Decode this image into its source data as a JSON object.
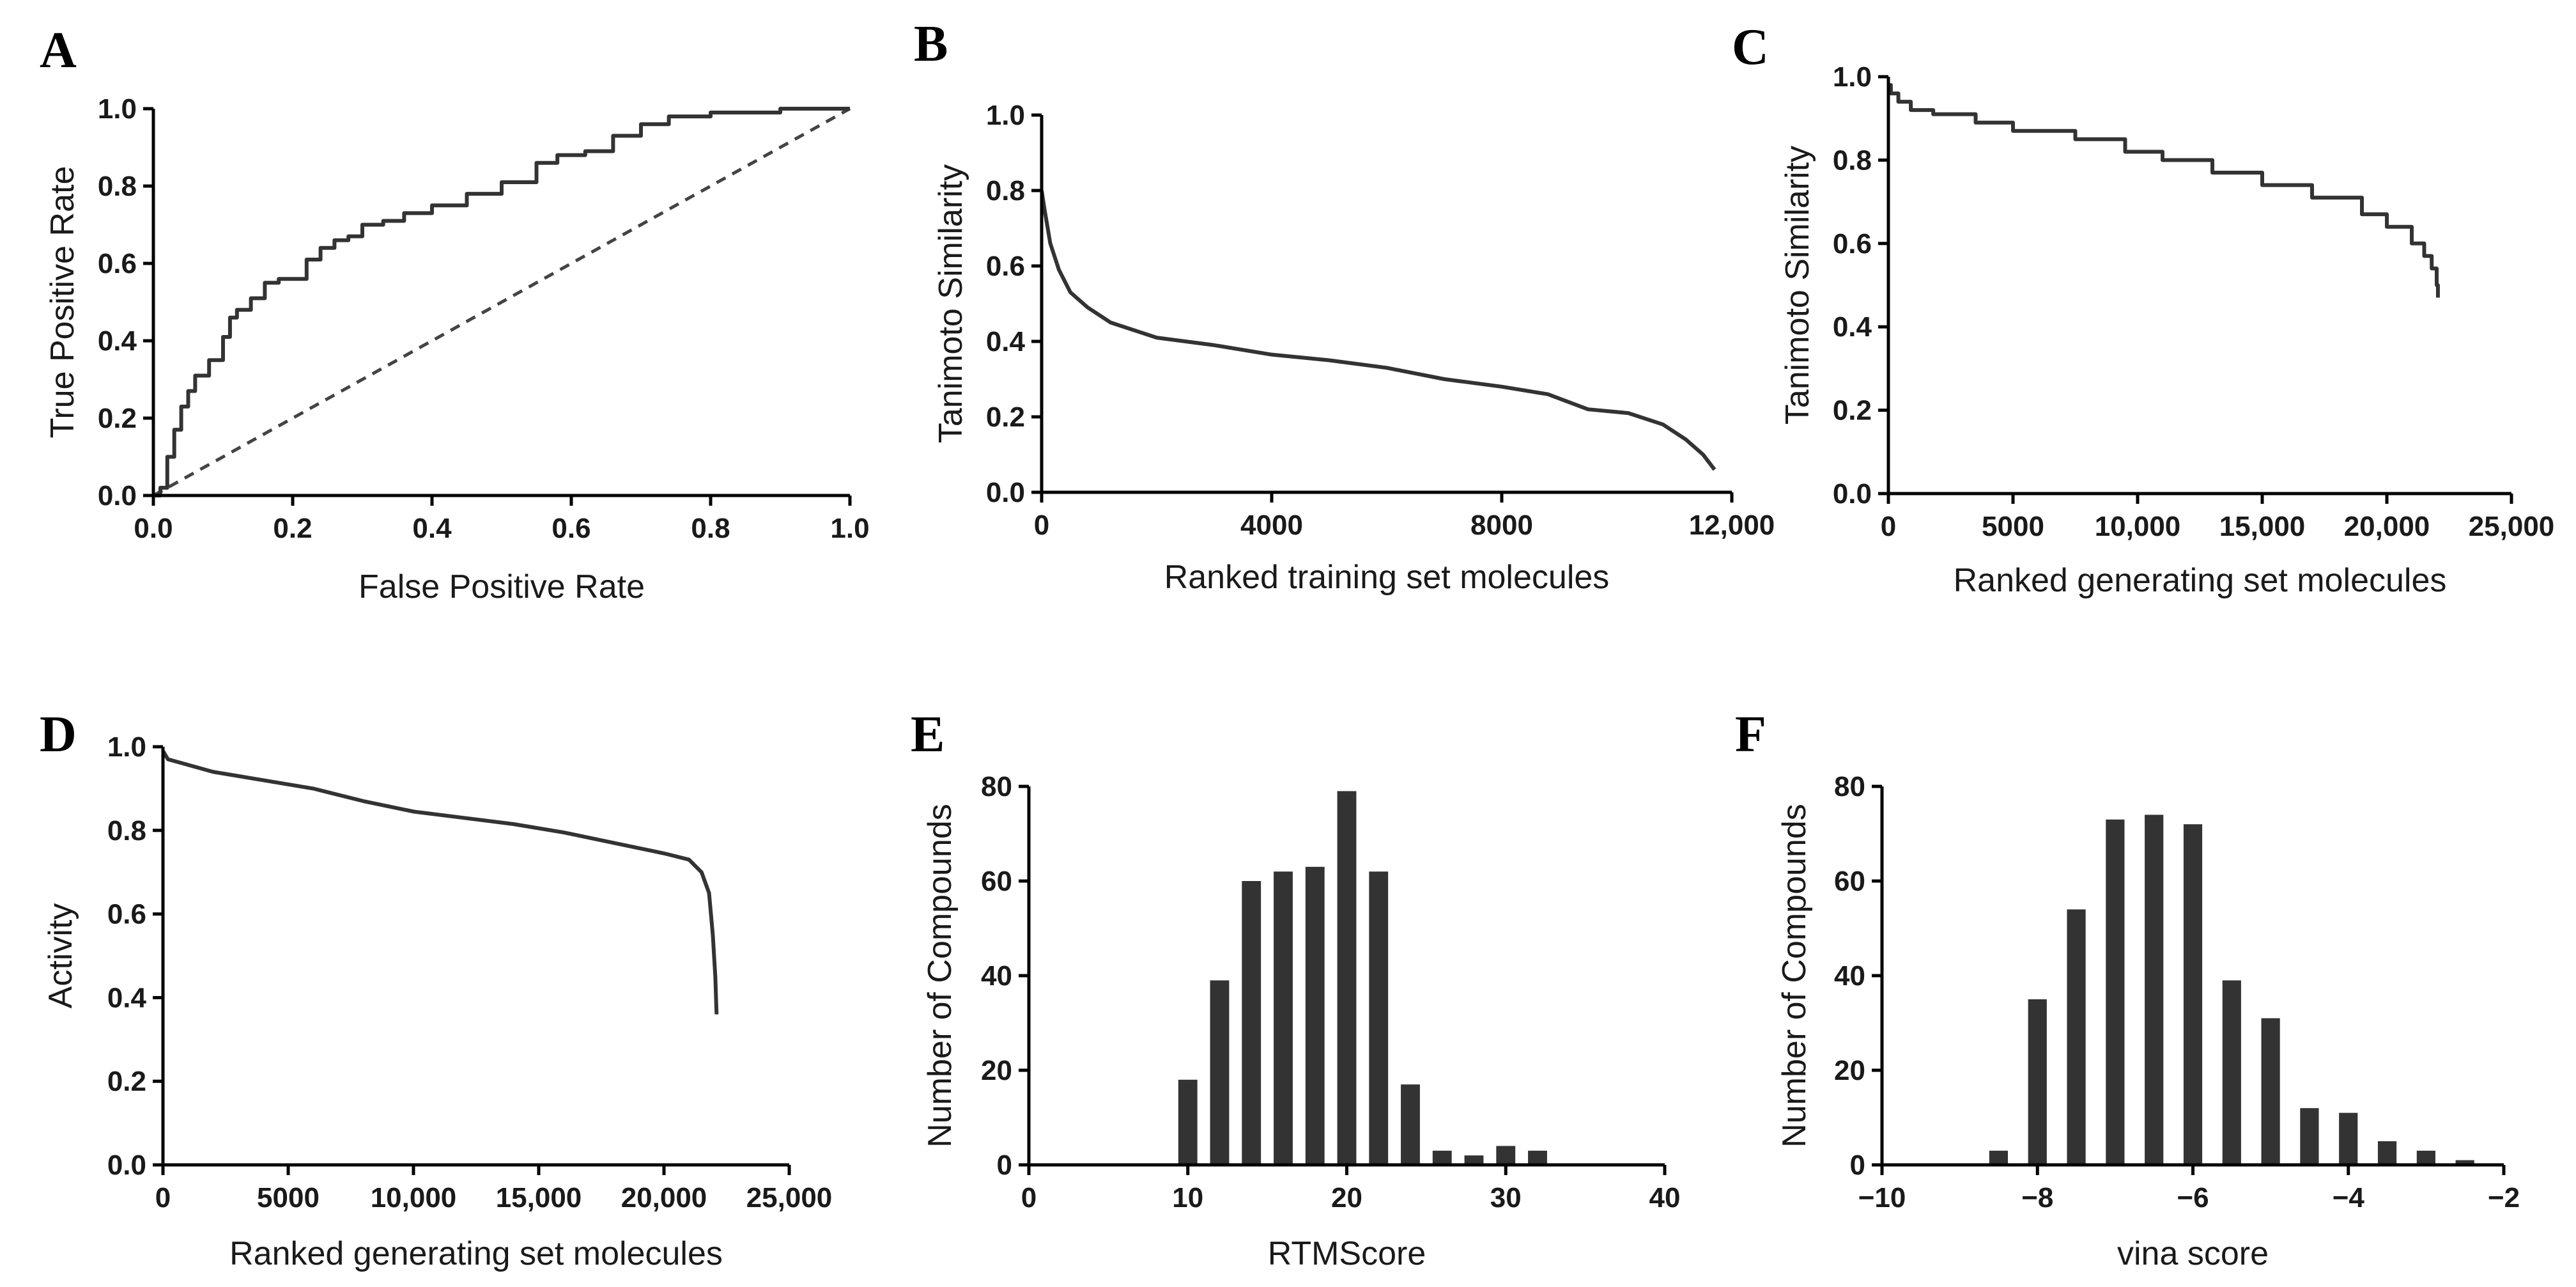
{
  "panels": [
    {
      "id": "A",
      "letter": "A",
      "chart_data": {
        "type": "line",
        "xlabel": "False Positive Rate",
        "ylabel": "True Positive Rate",
        "xlim": [
          0,
          1.0
        ],
        "ylim": [
          0,
          1.0
        ],
        "xticks": [
          "0.0",
          "0.2",
          "0.4",
          "0.6",
          "0.8",
          "1.0"
        ],
        "yticks": [
          "0.0",
          "0.2",
          "0.4",
          "0.6",
          "0.8",
          "1.0"
        ],
        "step": true,
        "series": [
          {
            "x": [
              0.0,
              0.01,
              0.02,
              0.03,
              0.04,
              0.05,
              0.06,
              0.08,
              0.1,
              0.11,
              0.12,
              0.14,
              0.16,
              0.18,
              0.2,
              0.22,
              0.24,
              0.26,
              0.28,
              0.3,
              0.33,
              0.36,
              0.4,
              0.45,
              0.5,
              0.55,
              0.58,
              0.62,
              0.66,
              0.7,
              0.74,
              0.8,
              0.85,
              0.9,
              1.0
            ],
            "y": [
              0.0,
              0.02,
              0.1,
              0.17,
              0.23,
              0.27,
              0.31,
              0.35,
              0.41,
              0.46,
              0.48,
              0.51,
              0.55,
              0.56,
              0.56,
              0.61,
              0.64,
              0.66,
              0.67,
              0.7,
              0.71,
              0.73,
              0.75,
              0.78,
              0.81,
              0.86,
              0.88,
              0.89,
              0.93,
              0.96,
              0.98,
              0.99,
              0.99,
              1.0,
              1.0
            ]
          }
        ],
        "reference_line": {
          "x": [
            0,
            1.0
          ],
          "y": [
            0,
            1.0
          ]
        }
      }
    },
    {
      "id": "B",
      "letter": "B",
      "chart_data": {
        "type": "line",
        "xlabel": "Ranked training set molecules",
        "ylabel": "Tanimoto Similarity",
        "xlim": [
          0,
          12000
        ],
        "ylim": [
          0,
          1.0
        ],
        "xticks": [
          "0",
          "4000",
          "8000",
          "12,000"
        ],
        "yticks": [
          "0.0",
          "0.2",
          "0.4",
          "0.6",
          "0.8",
          "1.0"
        ],
        "series": [
          {
            "x": [
              0,
              50,
              150,
              300,
              500,
              800,
              1200,
              2000,
              3000,
              4000,
              5000,
              6000,
              7000,
              8000,
              8800,
              9500,
              10200,
              10800,
              11200,
              11500,
              11700
            ],
            "y": [
              0.8,
              0.75,
              0.66,
              0.59,
              0.53,
              0.49,
              0.45,
              0.41,
              0.39,
              0.365,
              0.35,
              0.33,
              0.3,
              0.28,
              0.26,
              0.22,
              0.21,
              0.18,
              0.14,
              0.1,
              0.06
            ]
          }
        ]
      }
    },
    {
      "id": "C",
      "letter": "C",
      "chart_data": {
        "type": "line",
        "xlabel": "Ranked generating set molecules",
        "ylabel": "Tanimoto Similarity",
        "xlim": [
          0,
          25000
        ],
        "ylim": [
          0,
          1.0
        ],
        "xticks": [
          "0",
          "5000",
          "10,000",
          "15,000",
          "20,000",
          "25,000"
        ],
        "yticks": [
          "0.0",
          "0.2",
          "0.4",
          "0.6",
          "0.8",
          "1.0"
        ],
        "step": true,
        "series": [
          {
            "x": [
              0,
              100,
              400,
              900,
              1800,
              3500,
              5000,
              7500,
              9500,
              11000,
              13000,
              15000,
              17000,
              19000,
              20000,
              21000,
              21500,
              21800,
              22000,
              22050
            ],
            "y": [
              0.98,
              0.96,
              0.94,
              0.92,
              0.91,
              0.89,
              0.87,
              0.85,
              0.82,
              0.8,
              0.77,
              0.74,
              0.71,
              0.67,
              0.64,
              0.6,
              0.57,
              0.54,
              0.5,
              0.47
            ]
          }
        ]
      }
    },
    {
      "id": "D",
      "letter": "D",
      "chart_data": {
        "type": "line",
        "xlabel": "Ranked generating set molecules",
        "ylabel": "Activity",
        "xlim": [
          0,
          25000
        ],
        "ylim": [
          0,
          1.0
        ],
        "xticks": [
          "0",
          "5000",
          "10,000",
          "15,000",
          "20,000",
          "25,000"
        ],
        "yticks": [
          "0.0",
          "0.2",
          "0.4",
          "0.6",
          "0.8",
          "1.0"
        ],
        "series": [
          {
            "x": [
              0,
              200,
              800,
              2000,
              4000,
              6000,
              8000,
              10000,
              12000,
              14000,
              16000,
              18000,
              20000,
              21000,
              21500,
              21800,
              21950,
              22050,
              22100
            ],
            "y": [
              0.99,
              0.97,
              0.96,
              0.94,
              0.92,
              0.9,
              0.87,
              0.845,
              0.83,
              0.815,
              0.795,
              0.77,
              0.745,
              0.73,
              0.7,
              0.65,
              0.55,
              0.45,
              0.36
            ]
          }
        ]
      }
    },
    {
      "id": "E",
      "letter": "E",
      "chart_data": {
        "type": "bar",
        "xlabel": "RTMScore",
        "ylabel": "Number of Compounds",
        "xlim": [
          0,
          40
        ],
        "ylim": [
          0,
          80
        ],
        "xticks": [
          "0",
          "10",
          "20",
          "30",
          "40"
        ],
        "yticks": [
          "0",
          "20",
          "40",
          "60",
          "80"
        ],
        "bar_width": 1.2,
        "x": [
          10,
          12,
          14,
          16,
          18,
          20,
          22,
          24,
          26,
          28,
          30,
          32
        ],
        "values": [
          18,
          39,
          60,
          62,
          63,
          79,
          62,
          17,
          3,
          2,
          4,
          3
        ]
      }
    },
    {
      "id": "F",
      "letter": "F",
      "chart_data": {
        "type": "bar",
        "xlabel": "vina score",
        "ylabel": "Number of Compounds",
        "xlim": [
          -10,
          -2
        ],
        "ylim": [
          0,
          80
        ],
        "xticks": [
          "−10",
          "−8",
          "−6",
          "−4",
          "−2"
        ],
        "yticks": [
          "0",
          "20",
          "40",
          "60",
          "80"
        ],
        "bar_width": 0.24,
        "x": [
          -8.5,
          -8.0,
          -7.5,
          -7.0,
          -6.5,
          -6.0,
          -5.5,
          -5.0,
          -4.5,
          -4.0,
          -3.5,
          -3.0,
          -2.5
        ],
        "values": [
          3,
          35,
          54,
          73,
          74,
          72,
          39,
          31,
          12,
          11,
          5,
          3,
          1
        ]
      }
    }
  ]
}
